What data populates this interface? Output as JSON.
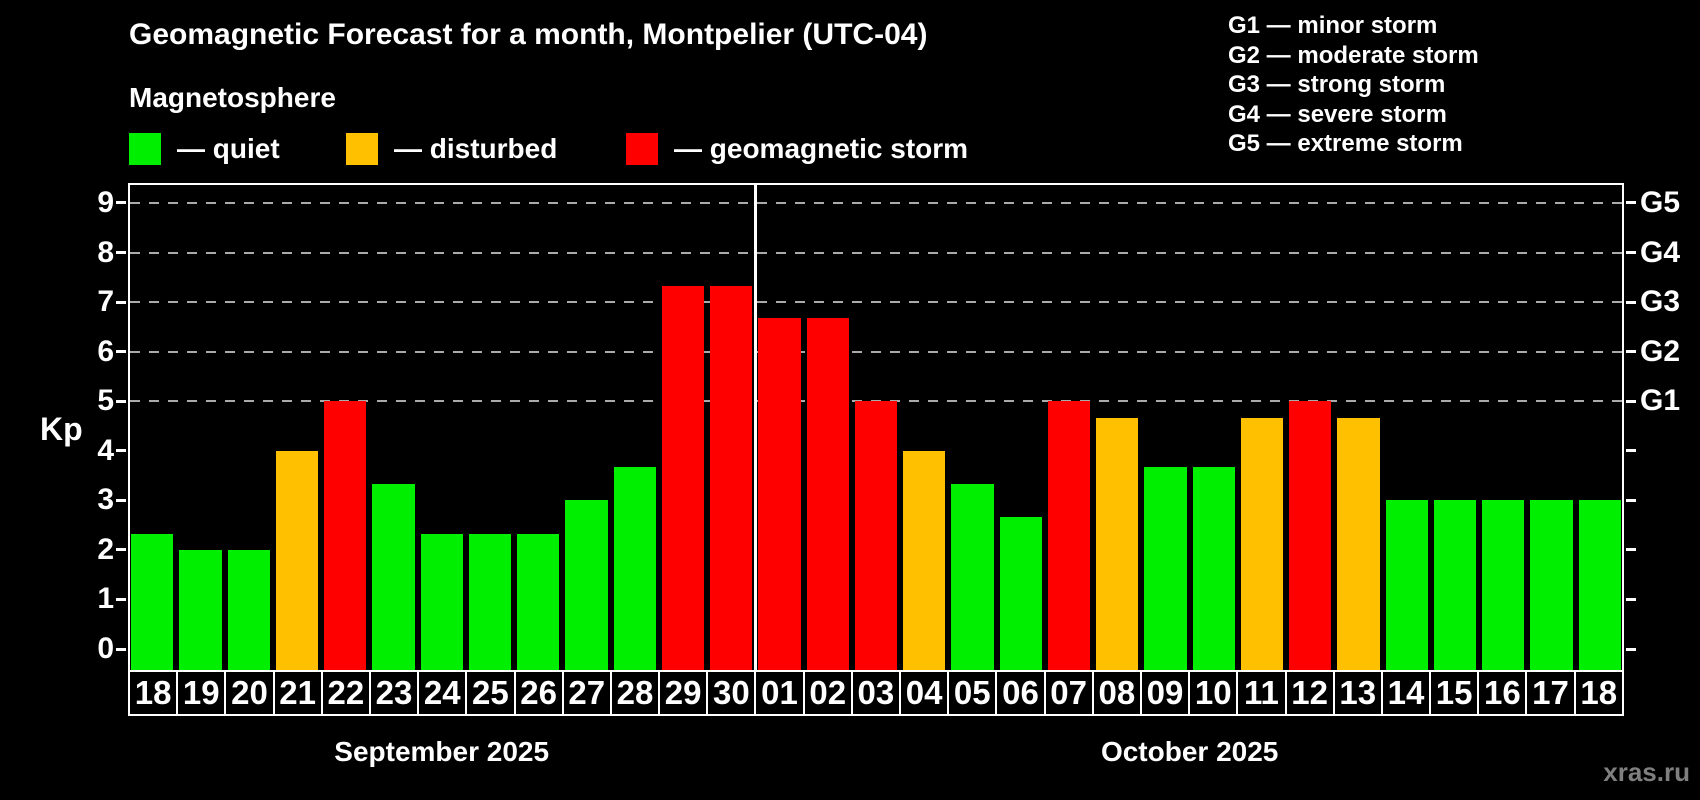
{
  "header": {
    "title": "Geomagnetic Forecast for a month, Montpelier (UTC-04)",
    "subtitle": "Magnetosphere"
  },
  "legend": {
    "items": [
      {
        "label": "— quiet",
        "status": "quiet"
      },
      {
        "label": "— disturbed",
        "status": "disturbed"
      },
      {
        "label": "— geomagnetic storm",
        "status": "storm"
      }
    ]
  },
  "g_scale_legend": {
    "lines": [
      "G1 — minor storm",
      "G2 — moderate storm",
      "G3 — strong storm",
      "G4 — severe storm",
      "G5 — extreme storm"
    ]
  },
  "colors": {
    "quiet": "#00ee00",
    "disturbed": "#ffc000",
    "storm": "#ff0000",
    "grid": "#aaaaaa",
    "axis": "#ffffff",
    "watermark": "#7f7f7f",
    "background": "#000000"
  },
  "chart_data": {
    "type": "bar",
    "title": "Geomagnetic Forecast for a month, Montpelier (UTC-04)",
    "xlabel": "",
    "ylabel": "Kp",
    "ylim": [
      0,
      9
    ],
    "yticks": [
      0,
      1,
      2,
      3,
      4,
      5,
      6,
      7,
      8,
      9
    ],
    "grid": "dashed horizontal at Kp 5-9 only",
    "legend_position": "top-left",
    "categories": [
      "18",
      "19",
      "20",
      "21",
      "22",
      "23",
      "24",
      "25",
      "26",
      "27",
      "28",
      "29",
      "30",
      "01",
      "02",
      "03",
      "04",
      "05",
      "06",
      "07",
      "08",
      "09",
      "10",
      "11",
      "12",
      "13",
      "14",
      "15",
      "16",
      "17",
      "18"
    ],
    "series": [
      {
        "name": "Kp forecast",
        "values": [
          2.33,
          2.0,
          2.0,
          4.0,
          5.0,
          3.33,
          2.33,
          2.33,
          2.33,
          3.0,
          3.67,
          7.33,
          7.33,
          6.67,
          6.67,
          5.0,
          4.0,
          3.33,
          2.67,
          5.0,
          4.67,
          3.67,
          3.67,
          4.67,
          5.0,
          4.67,
          3.0,
          3.0,
          3.0,
          3.0,
          3.0
        ]
      }
    ],
    "statuses": [
      "quiet",
      "quiet",
      "quiet",
      "disturbed",
      "storm",
      "quiet",
      "quiet",
      "quiet",
      "quiet",
      "quiet",
      "quiet",
      "storm",
      "storm",
      "storm",
      "storm",
      "storm",
      "disturbed",
      "quiet",
      "quiet",
      "storm",
      "disturbed",
      "quiet",
      "quiet",
      "disturbed",
      "storm",
      "disturbed",
      "quiet",
      "quiet",
      "quiet",
      "quiet",
      "quiet"
    ],
    "months": [
      {
        "label": "September 2025",
        "days": 13
      },
      {
        "label": "October 2025",
        "days": 18
      }
    ],
    "right_axis": {
      "labels": [
        "G1",
        "G2",
        "G3",
        "G4",
        "G5"
      ],
      "kp_positions": [
        5,
        6,
        7,
        8,
        9
      ]
    }
  },
  "watermark": "xras.ru"
}
